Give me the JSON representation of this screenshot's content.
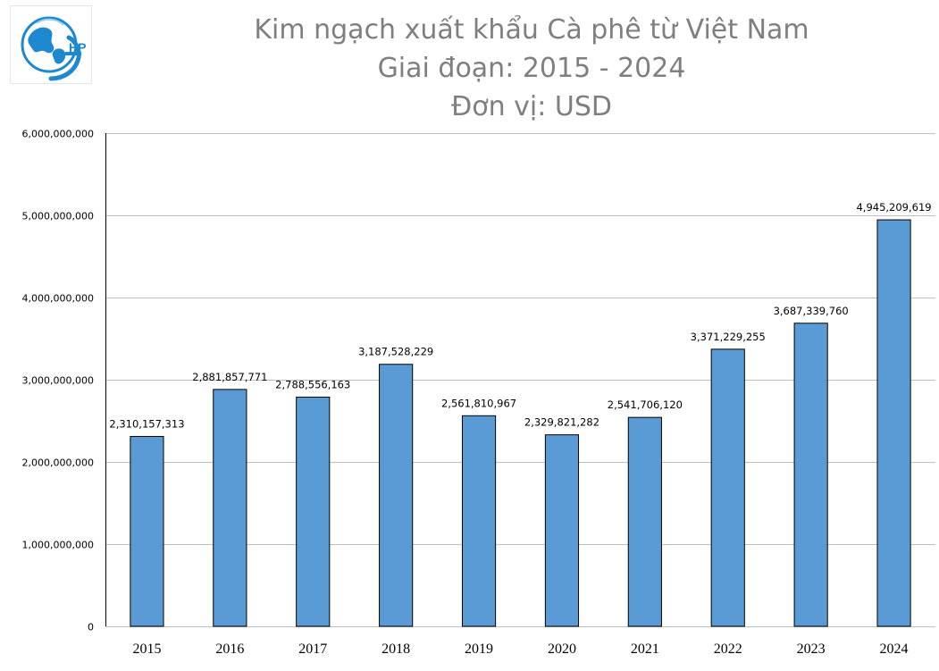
{
  "logo": {
    "text": "HP"
  },
  "colors": {
    "bar": "#5b9bd5",
    "bar_stroke": "#000000",
    "grid": "#bfbfbf",
    "title": "#7f7f7f"
  },
  "chart_data": {
    "type": "bar",
    "title": "Kim ngạch xuất khẩu Cà phê từ Việt Nam",
    "subtitle": "Giai đoạn: 2015 - 2024",
    "unit": "Đơn vị: USD",
    "categories": [
      "2015",
      "2016",
      "2017",
      "2018",
      "2019",
      "2020",
      "2021",
      "2022",
      "2023",
      "2024"
    ],
    "values": [
      2310157313,
      2881857771,
      2788556163,
      3187528229,
      2561810967,
      2329821282,
      2541706120,
      3371229255,
      3687339760,
      4945209619
    ],
    "data_labels": [
      "2,310,157,313",
      "2,881,857,771",
      "2,788,556,163",
      "3,187,528,229",
      "2,561,810,967",
      "2,329,821,282",
      "2,541,706,120",
      "3,371,229,255",
      "3,687,339,760",
      "4,945,209,619"
    ],
    "y_ticks": [
      0,
      1000000000,
      2000000000,
      3000000000,
      4000000000,
      5000000000,
      6000000000
    ],
    "y_tick_labels": [
      "0",
      "1,000,000,000",
      "2,000,000,000",
      "3,000,000,000",
      "4,000,000,000",
      "5,000,000,000",
      "6,000,000,000"
    ],
    "ylim": [
      0,
      6000000000
    ],
    "grid": true,
    "legend": "none"
  }
}
